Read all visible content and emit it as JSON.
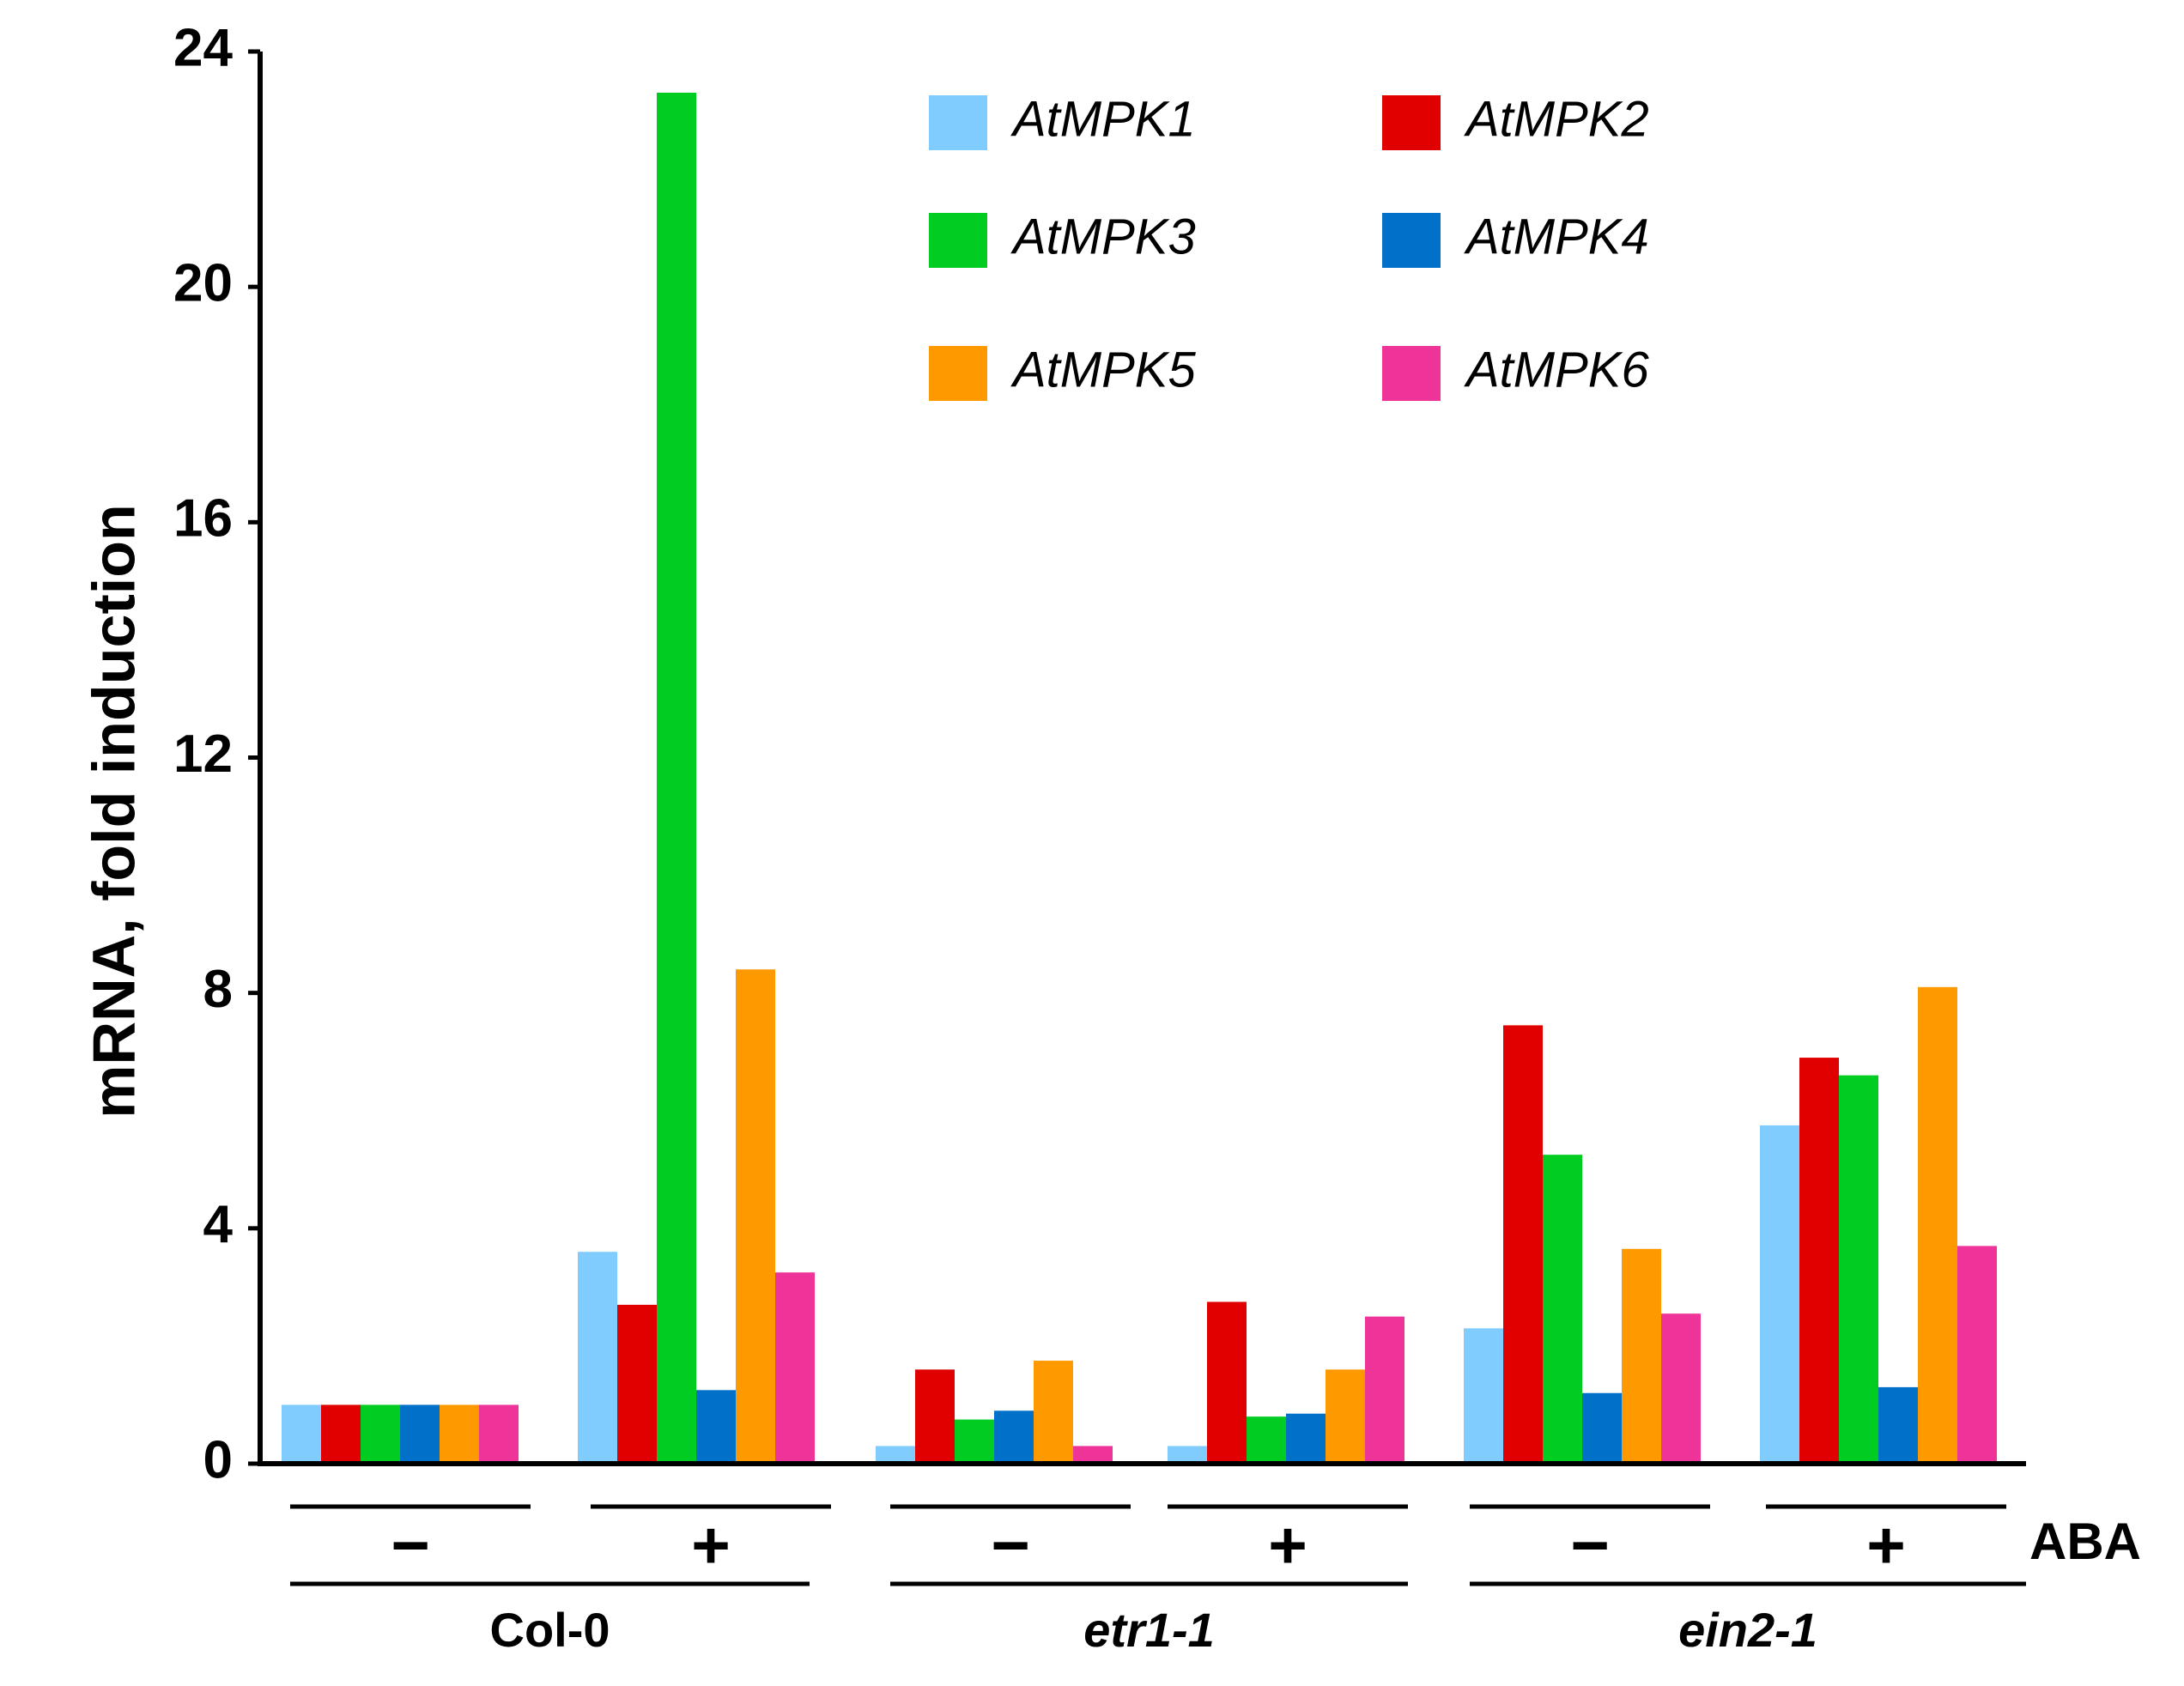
{
  "chart_data": {
    "type": "bar",
    "title": "",
    "xlabel": "",
    "ylabel": "mRNA, fold induction",
    "ylim": [
      0,
      24
    ],
    "yticks": [
      "0",
      "4",
      "8",
      "12",
      "16",
      "20",
      "24"
    ],
    "grid": false,
    "legend_position": "top-right",
    "treatment_label": "ABA",
    "categories": [
      {
        "genotype": "Col-0",
        "aba": "−"
      },
      {
        "genotype": "Col-0",
        "aba": "+"
      },
      {
        "genotype": "etr1-1",
        "aba": "−"
      },
      {
        "genotype": "etr1-1",
        "aba": "+"
      },
      {
        "genotype": "ein2-1",
        "aba": "−"
      },
      {
        "genotype": "ein2-1",
        "aba": "+"
      }
    ],
    "genotypes": [
      {
        "name": "Col-0",
        "italic": false
      },
      {
        "name": "etr1-1",
        "italic": true
      },
      {
        "name": "ein2-1",
        "italic": true
      }
    ],
    "series": [
      {
        "name": "AtMPK1",
        "color": "#80CCFF",
        "values": [
          1.0,
          3.6,
          0.3,
          0.3,
          2.3,
          5.75
        ]
      },
      {
        "name": "AtMPK2",
        "color": "#E00000",
        "values": [
          1.0,
          2.7,
          1.6,
          2.75,
          7.45,
          6.9
        ]
      },
      {
        "name": "AtMPK3",
        "color": "#00CC22",
        "values": [
          1.0,
          23.3,
          0.75,
          0.8,
          5.25,
          6.6
        ]
      },
      {
        "name": "AtMPK4",
        "color": "#0070C8",
        "values": [
          1.0,
          1.25,
          0.9,
          0.85,
          1.2,
          1.3
        ]
      },
      {
        "name": "AtMPK5",
        "color": "#FF9900",
        "values": [
          1.0,
          8.4,
          1.75,
          1.6,
          3.65,
          8.1
        ]
      },
      {
        "name": "AtMPK6",
        "color": "#EE3399",
        "values": [
          1.0,
          3.25,
          0.3,
          2.5,
          2.55,
          3.7
        ]
      }
    ]
  }
}
